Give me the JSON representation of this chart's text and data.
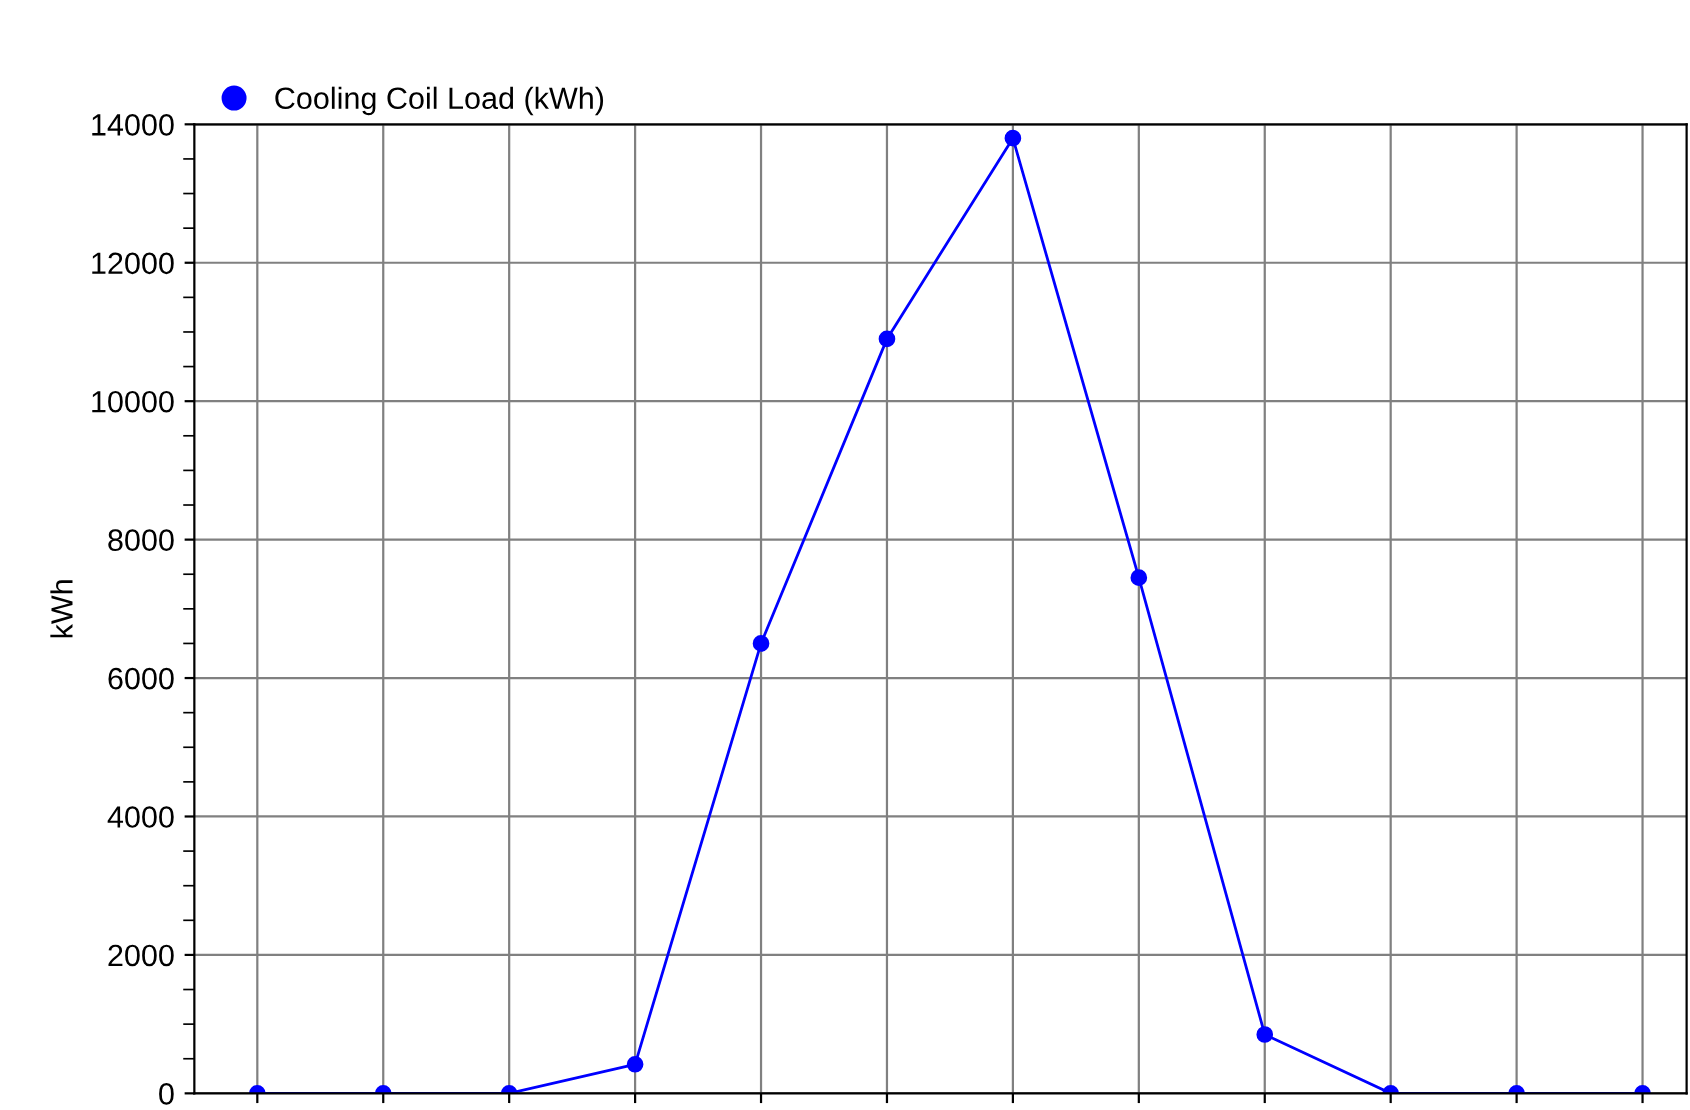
{
  "chart_data": {
    "type": "line",
    "ylabel": "kWh",
    "categories": [
      null,
      null,
      null,
      null,
      null,
      null,
      null,
      null,
      null,
      null,
      null,
      null
    ],
    "series": [
      {
        "name": "Cooling Coil Load (kWh)",
        "color": "#0000ff",
        "values": [
          0,
          0,
          0,
          420,
          6500,
          10900,
          13800,
          7450,
          850,
          0,
          0,
          0
        ]
      }
    ],
    "ylim": [
      0,
      14000
    ],
    "yticks": [
      0,
      2000,
      4000,
      6000,
      8000,
      10000,
      12000,
      14000
    ],
    "grid": true,
    "legend": "top left",
    "marker": "circle",
    "line_style": "solid"
  }
}
